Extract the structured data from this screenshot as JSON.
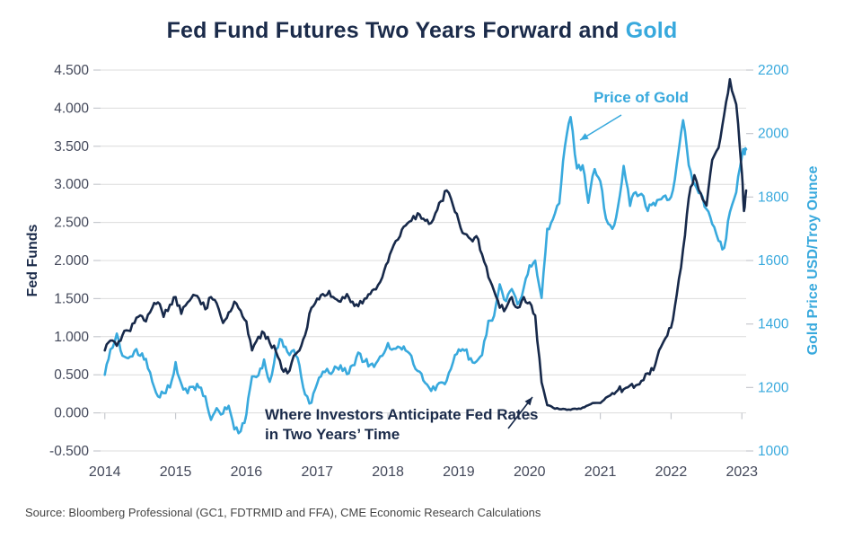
{
  "title": {
    "main": "Fed Fund Futures Two Years Forward and ",
    "highlight": "Gold"
  },
  "source": "Source: Bloomberg Professional (GC1, FDTRMID and FFA), CME Economic Research Calculations",
  "colors": {
    "navy": "#1b2b4a",
    "line_navy": "#17294a",
    "blue": "#38a9dd",
    "grid": "#dcdcdc",
    "tick_mark": "#c6c9ce",
    "axis_text": "#43485a",
    "source_text": "#454545",
    "background": "#ffffff"
  },
  "chart_data": {
    "type": "line",
    "title": "Fed Fund Futures Two Years Forward and Gold",
    "grid": "horizontal-only",
    "x_axis": {
      "range": [
        2013.94,
        2023.06
      ],
      "tick_values": [
        2014,
        2015,
        2016,
        2017,
        2018,
        2019,
        2020,
        2021,
        2022,
        2023
      ],
      "tick_labels": [
        "2014",
        "2015",
        "2016",
        "2017",
        "2018",
        "2019",
        "2020",
        "2021",
        "2022",
        "2023"
      ]
    },
    "left_axis": {
      "label": "Fed Funds",
      "range": [
        -0.5,
        4.5
      ],
      "tick_values": [
        4.5,
        4.0,
        3.5,
        3.0,
        2.5,
        2.0,
        1.5,
        1.0,
        0.5,
        0.0,
        -0.5
      ],
      "tick_labels": [
        "4.500",
        "4.000",
        "3.500",
        "3.000",
        "2.500",
        "2.000",
        "1.500",
        "1.000",
        "0.500",
        "0.000",
        "-0.500"
      ]
    },
    "right_axis": {
      "label": "Gold Price USD/Troy Ounce",
      "range": [
        1000,
        2200
      ],
      "tick_values": [
        2200,
        2000,
        1800,
        1600,
        1400,
        1200,
        1000
      ],
      "tick_labels": [
        "2200",
        "2000",
        "1800",
        "1600",
        "1400",
        "1200",
        "1000"
      ]
    },
    "series": [
      {
        "name": "Price of Gold",
        "axis": "right",
        "color": "#38a9dd",
        "noise": 13,
        "points": [
          [
            2014.0,
            1240
          ],
          [
            2014.08,
            1320
          ],
          [
            2014.17,
            1370
          ],
          [
            2014.25,
            1300
          ],
          [
            2014.33,
            1292
          ],
          [
            2014.42,
            1315
          ],
          [
            2014.5,
            1300
          ],
          [
            2014.58,
            1290
          ],
          [
            2014.67,
            1218
          ],
          [
            2014.75,
            1172
          ],
          [
            2014.83,
            1182
          ],
          [
            2014.92,
            1200
          ],
          [
            2015.0,
            1280
          ],
          [
            2015.08,
            1212
          ],
          [
            2015.17,
            1182
          ],
          [
            2015.25,
            1202
          ],
          [
            2015.33,
            1200
          ],
          [
            2015.42,
            1172
          ],
          [
            2015.5,
            1098
          ],
          [
            2015.58,
            1135
          ],
          [
            2015.67,
            1118
          ],
          [
            2015.75,
            1142
          ],
          [
            2015.83,
            1068
          ],
          [
            2015.92,
            1062
          ],
          [
            2016.0,
            1115
          ],
          [
            2016.08,
            1235
          ],
          [
            2016.17,
            1238
          ],
          [
            2016.25,
            1288
          ],
          [
            2016.33,
            1218
          ],
          [
            2016.42,
            1320
          ],
          [
            2016.5,
            1350
          ],
          [
            2016.58,
            1312
          ],
          [
            2016.67,
            1318
          ],
          [
            2016.75,
            1270
          ],
          [
            2016.83,
            1178
          ],
          [
            2016.92,
            1152
          ],
          [
            2017.0,
            1212
          ],
          [
            2017.08,
            1250
          ],
          [
            2017.17,
            1246
          ],
          [
            2017.25,
            1266
          ],
          [
            2017.33,
            1270
          ],
          [
            2017.42,
            1242
          ],
          [
            2017.5,
            1270
          ],
          [
            2017.58,
            1310
          ],
          [
            2017.67,
            1282
          ],
          [
            2017.75,
            1272
          ],
          [
            2017.83,
            1276
          ],
          [
            2017.92,
            1300
          ],
          [
            2018.0,
            1340
          ],
          [
            2018.08,
            1322
          ],
          [
            2018.17,
            1326
          ],
          [
            2018.25,
            1316
          ],
          [
            2018.33,
            1300
          ],
          [
            2018.42,
            1252
          ],
          [
            2018.5,
            1222
          ],
          [
            2018.58,
            1200
          ],
          [
            2018.67,
            1192
          ],
          [
            2018.75,
            1216
          ],
          [
            2018.83,
            1222
          ],
          [
            2018.92,
            1280
          ],
          [
            2019.0,
            1320
          ],
          [
            2019.08,
            1316
          ],
          [
            2019.17,
            1292
          ],
          [
            2019.25,
            1282
          ],
          [
            2019.33,
            1302
          ],
          [
            2019.42,
            1410
          ],
          [
            2019.5,
            1426
          ],
          [
            2019.58,
            1525
          ],
          [
            2019.67,
            1472
          ],
          [
            2019.75,
            1510
          ],
          [
            2019.83,
            1462
          ],
          [
            2019.92,
            1515
          ],
          [
            2020.0,
            1585
          ],
          [
            2020.08,
            1600
          ],
          [
            2020.17,
            1482
          ],
          [
            2020.25,
            1700
          ],
          [
            2020.33,
            1730
          ],
          [
            2020.42,
            1780
          ],
          [
            2020.5,
            1960
          ],
          [
            2020.58,
            2052
          ],
          [
            2020.67,
            1890
          ],
          [
            2020.75,
            1900
          ],
          [
            2020.83,
            1782
          ],
          [
            2020.92,
            1888
          ],
          [
            2021.0,
            1850
          ],
          [
            2021.08,
            1732
          ],
          [
            2021.17,
            1700
          ],
          [
            2021.25,
            1770
          ],
          [
            2021.33,
            1898
          ],
          [
            2021.42,
            1772
          ],
          [
            2021.5,
            1815
          ],
          [
            2021.58,
            1810
          ],
          [
            2021.67,
            1756
          ],
          [
            2021.75,
            1782
          ],
          [
            2021.83,
            1792
          ],
          [
            2021.92,
            1805
          ],
          [
            2022.0,
            1800
          ],
          [
            2022.08,
            1902
          ],
          [
            2022.17,
            2042
          ],
          [
            2022.25,
            1900
          ],
          [
            2022.33,
            1842
          ],
          [
            2022.42,
            1812
          ],
          [
            2022.5,
            1762
          ],
          [
            2022.58,
            1715
          ],
          [
            2022.67,
            1662
          ],
          [
            2022.75,
            1640
          ],
          [
            2022.83,
            1752
          ],
          [
            2022.92,
            1815
          ],
          [
            2023.0,
            1928
          ],
          [
            2023.03,
            1945
          ],
          [
            2023.06,
            1950
          ]
        ]
      },
      {
        "name": "Fed Fund Futures Two Years Forward",
        "axis": "left",
        "color": "#17294a",
        "noise": 0.045,
        "points": [
          [
            2014.0,
            0.82
          ],
          [
            2014.08,
            0.95
          ],
          [
            2014.17,
            0.88
          ],
          [
            2014.25,
            1.02
          ],
          [
            2014.33,
            1.08
          ],
          [
            2014.42,
            1.18
          ],
          [
            2014.5,
            1.28
          ],
          [
            2014.58,
            1.2
          ],
          [
            2014.67,
            1.38
          ],
          [
            2014.75,
            1.45
          ],
          [
            2014.83,
            1.26
          ],
          [
            2014.92,
            1.42
          ],
          [
            2015.0,
            1.52
          ],
          [
            2015.08,
            1.3
          ],
          [
            2015.17,
            1.45
          ],
          [
            2015.25,
            1.55
          ],
          [
            2015.33,
            1.5
          ],
          [
            2015.42,
            1.36
          ],
          [
            2015.5,
            1.52
          ],
          [
            2015.58,
            1.44
          ],
          [
            2015.67,
            1.18
          ],
          [
            2015.75,
            1.32
          ],
          [
            2015.83,
            1.46
          ],
          [
            2015.92,
            1.34
          ],
          [
            2016.0,
            1.2
          ],
          [
            2016.08,
            0.82
          ],
          [
            2016.17,
            1.0
          ],
          [
            2016.25,
            1.05
          ],
          [
            2016.33,
            0.92
          ],
          [
            2016.42,
            0.8
          ],
          [
            2016.5,
            0.58
          ],
          [
            2016.58,
            0.52
          ],
          [
            2016.67,
            0.75
          ],
          [
            2016.75,
            0.82
          ],
          [
            2016.83,
            1.02
          ],
          [
            2016.92,
            1.38
          ],
          [
            2017.0,
            1.5
          ],
          [
            2017.08,
            1.56
          ],
          [
            2017.17,
            1.6
          ],
          [
            2017.25,
            1.5
          ],
          [
            2017.33,
            1.46
          ],
          [
            2017.42,
            1.56
          ],
          [
            2017.5,
            1.46
          ],
          [
            2017.58,
            1.4
          ],
          [
            2017.67,
            1.5
          ],
          [
            2017.75,
            1.56
          ],
          [
            2017.83,
            1.62
          ],
          [
            2017.92,
            1.78
          ],
          [
            2018.0,
            1.98
          ],
          [
            2018.08,
            2.2
          ],
          [
            2018.17,
            2.32
          ],
          [
            2018.25,
            2.46
          ],
          [
            2018.33,
            2.52
          ],
          [
            2018.42,
            2.62
          ],
          [
            2018.5,
            2.55
          ],
          [
            2018.58,
            2.48
          ],
          [
            2018.67,
            2.62
          ],
          [
            2018.75,
            2.78
          ],
          [
            2018.83,
            2.92
          ],
          [
            2018.92,
            2.72
          ],
          [
            2019.0,
            2.52
          ],
          [
            2019.08,
            2.35
          ],
          [
            2019.17,
            2.28
          ],
          [
            2019.25,
            2.32
          ],
          [
            2019.33,
            2.08
          ],
          [
            2019.42,
            1.78
          ],
          [
            2019.5,
            1.6
          ],
          [
            2019.58,
            1.38
          ],
          [
            2019.67,
            1.38
          ],
          [
            2019.75,
            1.52
          ],
          [
            2019.83,
            1.38
          ],
          [
            2019.92,
            1.52
          ],
          [
            2020.0,
            1.45
          ],
          [
            2020.08,
            1.28
          ],
          [
            2020.17,
            0.4
          ],
          [
            2020.25,
            0.1
          ],
          [
            2020.33,
            0.07
          ],
          [
            2020.42,
            0.05
          ],
          [
            2020.5,
            0.05
          ],
          [
            2020.58,
            0.04
          ],
          [
            2020.67,
            0.05
          ],
          [
            2020.75,
            0.07
          ],
          [
            2020.83,
            0.1
          ],
          [
            2020.92,
            0.13
          ],
          [
            2021.0,
            0.13
          ],
          [
            2021.08,
            0.2
          ],
          [
            2021.17,
            0.26
          ],
          [
            2021.25,
            0.3
          ],
          [
            2021.33,
            0.31
          ],
          [
            2021.42,
            0.36
          ],
          [
            2021.5,
            0.36
          ],
          [
            2021.58,
            0.42
          ],
          [
            2021.67,
            0.52
          ],
          [
            2021.75,
            0.56
          ],
          [
            2021.83,
            0.82
          ],
          [
            2021.92,
            0.98
          ],
          [
            2022.0,
            1.12
          ],
          [
            2022.08,
            1.55
          ],
          [
            2022.17,
            2.15
          ],
          [
            2022.25,
            2.82
          ],
          [
            2022.33,
            3.12
          ],
          [
            2022.42,
            2.88
          ],
          [
            2022.5,
            2.72
          ],
          [
            2022.58,
            3.32
          ],
          [
            2022.67,
            3.48
          ],
          [
            2022.75,
            3.92
          ],
          [
            2022.83,
            4.38
          ],
          [
            2022.92,
            4.05
          ],
          [
            2023.0,
            3.15
          ],
          [
            2023.03,
            2.65
          ],
          [
            2023.06,
            2.92
          ]
        ]
      }
    ],
    "annotations": [
      {
        "id": "price-of-gold",
        "text": "Price of Gold"
      },
      {
        "id": "fed-rates",
        "line1": "Where Investors Anticipate Fed Rates",
        "line2": "in Two Years’ Time"
      }
    ]
  }
}
